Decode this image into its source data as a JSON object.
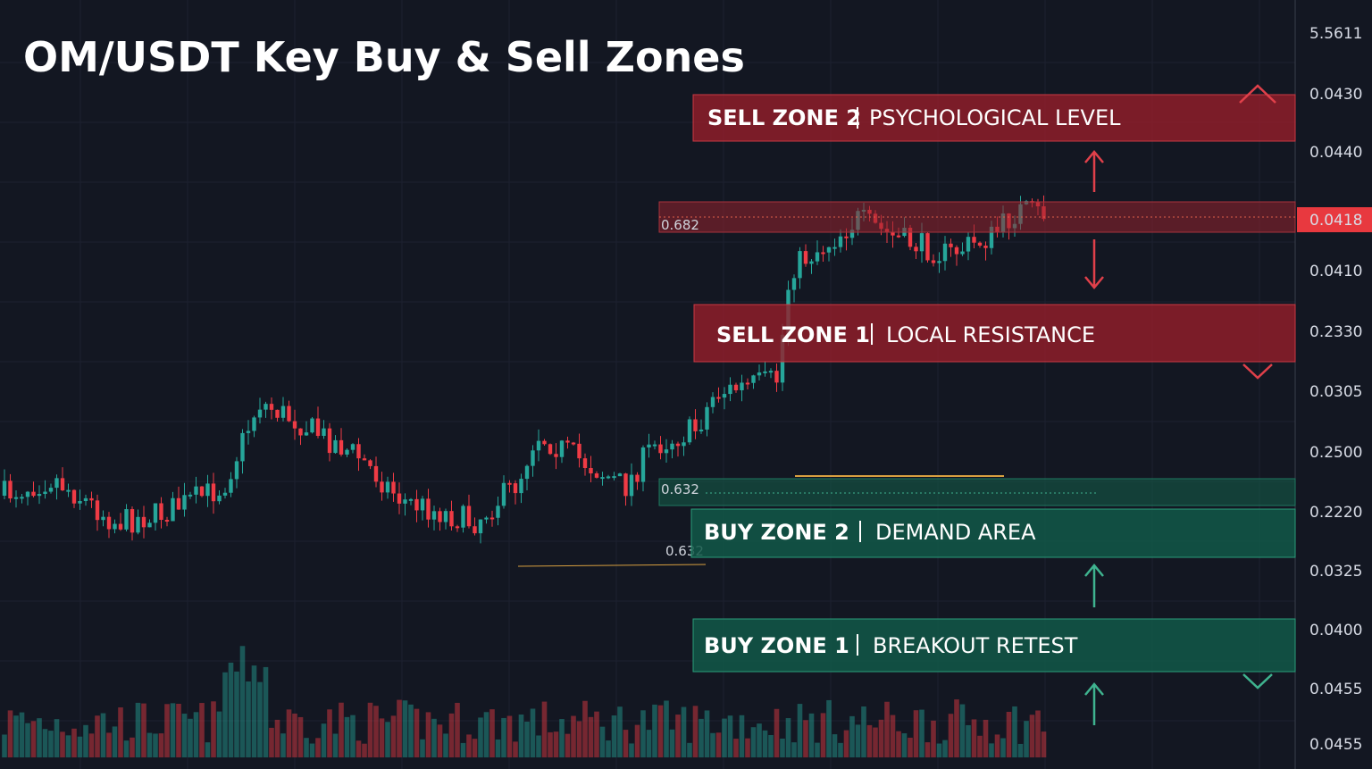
{
  "title": "OM/USDT Key Buy & Sell Zones",
  "zones": [
    {
      "title": "SELL ZONE 2",
      "subtitle": "PSYCHOLOGICAL LEVEL"
    },
    {
      "title": "SELL ZONE 1",
      "subtitle": "LOCAL RESISTANCE"
    },
    {
      "title": "BUY ZONE 2",
      "subtitle": "DEMAND AREA"
    },
    {
      "title": "BUY ZONE 1",
      "subtitle": "BREAKOUT RETEST"
    }
  ],
  "level_labels": [
    "0.682",
    "0.632",
    "0.632"
  ],
  "price_badge": "0.0418",
  "axis_labels": [
    "5.5611",
    "0.0430",
    "0.0440",
    "0.0410",
    "0.2330",
    "0.0305",
    "0.2500",
    "0.2220",
    "0.0325",
    "0.0400",
    "0.0455",
    "0.0455"
  ]
}
